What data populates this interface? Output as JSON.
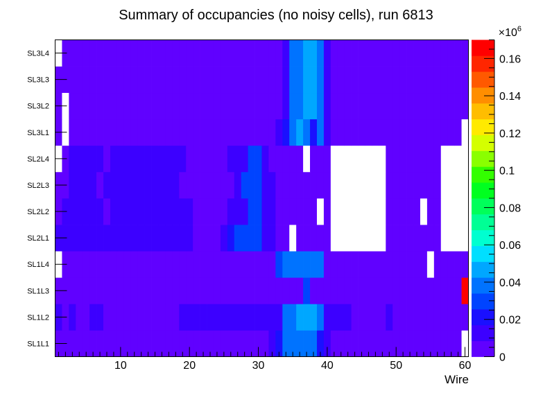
{
  "chart_data": {
    "type": "heatmap",
    "title": "Summary of occupancies (no noisy cells), run 6813",
    "xlabel": "Wire",
    "ylabel": "",
    "x_range": [
      0.5,
      60.5
    ],
    "x_ticks": [
      "10",
      "20",
      "30",
      "40",
      "50",
      "60"
    ],
    "x_tick_values": [
      10,
      20,
      30,
      40,
      50,
      60
    ],
    "rows": [
      "SL1L1",
      "SL1L2",
      "SL1L3",
      "SL1L4",
      "SL2L1",
      "SL2L2",
      "SL2L3",
      "SL2L4",
      "SL3L1",
      "SL3L2",
      "SL3L3",
      "SL3L4"
    ],
    "z_range": [
      0,
      170000
    ],
    "z_exponent_label": "×10",
    "z_exponent_power": "6",
    "z_ticks": [
      "0",
      "0.02",
      "0.04",
      "0.06",
      "0.08",
      "0.1",
      "0.12",
      "0.14",
      "0.16"
    ],
    "z_tick_values": [
      0,
      20000,
      40000,
      60000,
      80000,
      100000,
      120000,
      140000,
      160000
    ],
    "palette": [
      "#6001ff",
      "#3c00ff",
      "#1a10ff",
      "#0044ff",
      "#0073ff",
      "#00a7ff",
      "#00dfff",
      "#00ffd0",
      "#00ff95",
      "#00ff5a",
      "#00ff20",
      "#33ff00",
      "#8aff00",
      "#d4ff00",
      "#ffea00",
      "#ffbd00",
      "#ff8e00",
      "#ff5900",
      "#ff2600",
      "#ff0000"
    ],
    "empty_color": "#ffffff",
    "values": [
      [
        5000,
        5000,
        5000,
        5000,
        5000,
        5000,
        5000,
        5000,
        5000,
        5000,
        5000,
        5000,
        5000,
        5000,
        5000,
        5000,
        5000,
        5000,
        5000,
        5000,
        5000,
        5000,
        5000,
        5000,
        5000,
        5000,
        5000,
        5000,
        5000,
        5000,
        5000,
        12000,
        25000,
        35000,
        35000,
        35000,
        35000,
        35000,
        25000,
        15000,
        5000,
        5000,
        5000,
        5000,
        5000,
        5000,
        5000,
        5000,
        5000,
        5000,
        5000,
        5000,
        5000,
        5000,
        5000,
        5000,
        5000,
        5000,
        5000,
        0
      ],
      [
        12000,
        5000,
        12000,
        5000,
        5000,
        12000,
        12000,
        5000,
        5000,
        5000,
        5000,
        5000,
        5000,
        5000,
        5000,
        5000,
        5000,
        5000,
        12000,
        12000,
        12000,
        12000,
        12000,
        12000,
        12000,
        12000,
        12000,
        12000,
        12000,
        12000,
        12000,
        12000,
        12000,
        35000,
        35000,
        45000,
        45000,
        45000,
        35000,
        12000,
        15000,
        15000,
        15000,
        5000,
        5000,
        5000,
        5000,
        5000,
        12000,
        5000,
        5000,
        5000,
        5000,
        5000,
        5000,
        5000,
        5000,
        5000,
        5000,
        5000
      ],
      [
        5000,
        5000,
        5000,
        5000,
        5000,
        5000,
        5000,
        5000,
        5000,
        5000,
        5000,
        5000,
        5000,
        5000,
        5000,
        5000,
        5000,
        5000,
        5000,
        5000,
        5000,
        5000,
        5000,
        5000,
        5000,
        5000,
        5000,
        5000,
        5000,
        5000,
        5000,
        5000,
        5000,
        5000,
        5000,
        5000,
        30000,
        5000,
        5000,
        5000,
        5000,
        5000,
        5000,
        5000,
        5000,
        5000,
        5000,
        5000,
        5000,
        5000,
        5000,
        5000,
        5000,
        5000,
        5000,
        5000,
        5000,
        5000,
        5000,
        170000
      ],
      [
        0,
        5000,
        5000,
        5000,
        5000,
        5000,
        5000,
        5000,
        5000,
        5000,
        5000,
        5000,
        5000,
        5000,
        5000,
        5000,
        5000,
        5000,
        5000,
        5000,
        5000,
        5000,
        5000,
        5000,
        5000,
        5000,
        5000,
        5000,
        5000,
        5000,
        5000,
        5000,
        30000,
        35000,
        35000,
        35000,
        35000,
        35000,
        35000,
        5000,
        5000,
        5000,
        5000,
        5000,
        5000,
        5000,
        5000,
        5000,
        5000,
        5000,
        5000,
        5000,
        5000,
        5000,
        0,
        5000,
        5000,
        5000,
        5000,
        5000
      ],
      [
        12000,
        12000,
        12000,
        12000,
        12000,
        12000,
        12000,
        12000,
        12000,
        12000,
        12000,
        12000,
        12000,
        12000,
        12000,
        12000,
        12000,
        12000,
        12000,
        12000,
        5000,
        5000,
        5000,
        5000,
        15000,
        25000,
        30000,
        30000,
        30000,
        30000,
        15000,
        15000,
        5000,
        5000,
        0,
        5000,
        5000,
        5000,
        5000,
        5000,
        0,
        0,
        0,
        0,
        0,
        0,
        0,
        0,
        5000,
        5000,
        5000,
        5000,
        5000,
        5000,
        5000,
        5000,
        0,
        0,
        0,
        0
      ],
      [
        5000,
        12000,
        12000,
        12000,
        12000,
        12000,
        12000,
        5000,
        12000,
        12000,
        12000,
        12000,
        12000,
        12000,
        12000,
        12000,
        12000,
        12000,
        12000,
        12000,
        5000,
        5000,
        5000,
        5000,
        5000,
        12000,
        15000,
        15000,
        30000,
        30000,
        15000,
        15000,
        5000,
        5000,
        5000,
        5000,
        5000,
        5000,
        0,
        5000,
        0,
        0,
        0,
        0,
        0,
        0,
        0,
        0,
        5000,
        5000,
        5000,
        5000,
        5000,
        0,
        5000,
        5000,
        0,
        0,
        0,
        0
      ],
      [
        5000,
        5000,
        12000,
        12000,
        12000,
        12000,
        5000,
        12000,
        12000,
        12000,
        12000,
        12000,
        12000,
        12000,
        12000,
        12000,
        12000,
        12000,
        5000,
        5000,
        5000,
        5000,
        5000,
        5000,
        5000,
        5000,
        12000,
        30000,
        30000,
        30000,
        15000,
        15000,
        5000,
        5000,
        5000,
        5000,
        5000,
        5000,
        5000,
        5000,
        0,
        0,
        0,
        0,
        0,
        0,
        0,
        0,
        5000,
        5000,
        5000,
        5000,
        5000,
        5000,
        5000,
        5000,
        0,
        0,
        0,
        0
      ],
      [
        0,
        5000,
        12000,
        12000,
        12000,
        12000,
        12000,
        5000,
        12000,
        12000,
        12000,
        12000,
        12000,
        12000,
        12000,
        12000,
        12000,
        12000,
        12000,
        5000,
        5000,
        5000,
        5000,
        5000,
        5000,
        12000,
        15000,
        15000,
        30000,
        30000,
        15000,
        5000,
        5000,
        5000,
        5000,
        5000,
        0,
        5000,
        5000,
        5000,
        0,
        0,
        0,
        0,
        0,
        0,
        0,
        0,
        5000,
        5000,
        5000,
        5000,
        5000,
        5000,
        5000,
        5000,
        0,
        0,
        0,
        0
      ],
      [
        5000,
        0,
        5000,
        5000,
        5000,
        5000,
        5000,
        5000,
        5000,
        5000,
        5000,
        5000,
        5000,
        5000,
        5000,
        5000,
        5000,
        5000,
        5000,
        5000,
        5000,
        5000,
        5000,
        5000,
        5000,
        5000,
        5000,
        5000,
        5000,
        5000,
        5000,
        5000,
        15000,
        25000,
        35000,
        45000,
        35000,
        25000,
        35000,
        15000,
        5000,
        5000,
        5000,
        5000,
        5000,
        5000,
        5000,
        5000,
        5000,
        5000,
        5000,
        5000,
        5000,
        5000,
        5000,
        5000,
        5000,
        5000,
        5000,
        0
      ],
      [
        5000,
        0,
        5000,
        5000,
        5000,
        5000,
        5000,
        5000,
        5000,
        5000,
        5000,
        5000,
        5000,
        5000,
        5000,
        5000,
        5000,
        5000,
        5000,
        5000,
        5000,
        5000,
        5000,
        5000,
        5000,
        5000,
        5000,
        5000,
        5000,
        5000,
        5000,
        5000,
        5000,
        15000,
        35000,
        35000,
        45000,
        45000,
        35000,
        15000,
        5000,
        5000,
        5000,
        5000,
        5000,
        5000,
        5000,
        5000,
        5000,
        5000,
        5000,
        5000,
        5000,
        5000,
        5000,
        5000,
        5000,
        5000,
        5000,
        5000
      ],
      [
        5000,
        5000,
        5000,
        5000,
        5000,
        5000,
        5000,
        5000,
        5000,
        5000,
        5000,
        5000,
        5000,
        5000,
        5000,
        5000,
        5000,
        5000,
        5000,
        5000,
        5000,
        5000,
        5000,
        5000,
        5000,
        5000,
        5000,
        5000,
        5000,
        5000,
        5000,
        5000,
        5000,
        15000,
        35000,
        35000,
        45000,
        45000,
        35000,
        15000,
        5000,
        5000,
        5000,
        5000,
        5000,
        5000,
        5000,
        5000,
        5000,
        5000,
        5000,
        5000,
        5000,
        5000,
        5000,
        5000,
        5000,
        5000,
        5000,
        5000
      ],
      [
        0,
        5000,
        5000,
        5000,
        5000,
        5000,
        5000,
        5000,
        5000,
        5000,
        5000,
        5000,
        5000,
        5000,
        5000,
        5000,
        5000,
        5000,
        5000,
        5000,
        5000,
        5000,
        5000,
        5000,
        5000,
        5000,
        5000,
        5000,
        5000,
        5000,
        5000,
        5000,
        5000,
        15000,
        35000,
        35000,
        45000,
        45000,
        35000,
        15000,
        5000,
        5000,
        5000,
        5000,
        5000,
        5000,
        5000,
        5000,
        5000,
        5000,
        5000,
        5000,
        5000,
        5000,
        5000,
        5000,
        5000,
        5000,
        5000,
        5000
      ]
    ]
  }
}
